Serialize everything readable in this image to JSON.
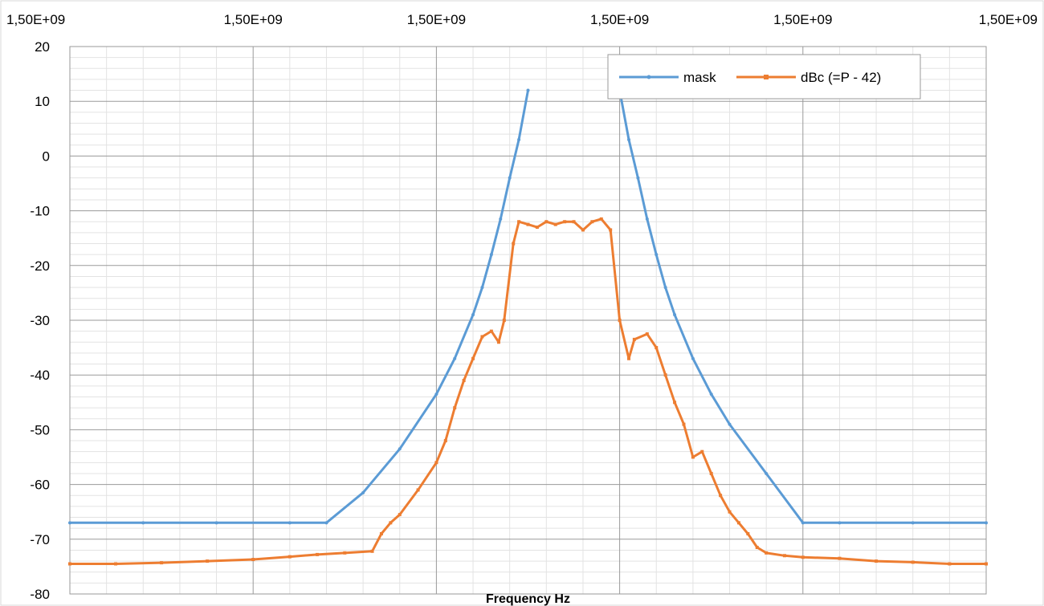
{
  "chart_data": {
    "type": "line",
    "title": "",
    "xlabel": "Frequency Hz",
    "ylabel": "",
    "x_tick_labels": [
      "1,50E+09",
      "1,50E+09",
      "1,50E+09",
      "1,50E+09",
      "1,50E+09",
      "1,50E+09"
    ],
    "x_tick_positions": [
      0,
      1,
      2,
      3,
      4,
      5
    ],
    "xlim": [
      0,
      5
    ],
    "ylim": [
      -80,
      20
    ],
    "y_ticks": [
      20,
      10,
      0,
      -10,
      -20,
      -30,
      -40,
      -50,
      -60,
      -70,
      -80
    ],
    "y_tick_labels": [
      "20",
      "10",
      "0",
      "-10",
      "-20",
      "-30",
      "-40",
      "-50",
      "-60",
      "-70",
      "-80"
    ],
    "grid": "on (major and minor)",
    "legend_position": "top-right",
    "series": [
      {
        "name": "mask",
        "color": "#5b9bd5",
        "marker": "small-dot",
        "segments": [
          {
            "x": [
              0.0,
              0.4,
              0.8,
              1.2,
              1.4,
              1.6,
              1.8,
              2.0,
              2.1,
              2.2,
              2.25,
              2.3,
              2.35,
              2.4,
              2.45,
              2.5
            ],
            "y": [
              -67,
              -67,
              -67,
              -67,
              -67,
              -61.5,
              -53.5,
              -43.5,
              -37,
              -29,
              -24,
              -18,
              -11.5,
              -4,
              3,
              12
            ]
          },
          {
            "x": [
              3.0,
              3.05,
              3.1,
              3.15,
              3.2,
              3.25,
              3.3,
              3.4,
              3.5,
              3.6,
              3.8,
              4.0,
              4.2,
              4.6,
              5.0
            ],
            "y": [
              12,
              3,
              -4,
              -11.5,
              -18,
              -24,
              -29,
              -37,
              -43.5,
              -49,
              -58,
              -67,
              -67,
              -67,
              -67
            ]
          }
        ]
      },
      {
        "name": "dBc (=P - 42)",
        "color": "#ed7d31",
        "marker": "small-square",
        "x": [
          0.0,
          0.25,
          0.5,
          0.75,
          1.0,
          1.2,
          1.35,
          1.5,
          1.65,
          1.7,
          1.75,
          1.8,
          1.9,
          2.0,
          2.05,
          2.1,
          2.15,
          2.2,
          2.25,
          2.3,
          2.34,
          2.37,
          2.42,
          2.45,
          2.5,
          2.55,
          2.6,
          2.65,
          2.7,
          2.75,
          2.8,
          2.85,
          2.9,
          2.95,
          3.0,
          3.05,
          3.08,
          3.15,
          3.2,
          3.25,
          3.3,
          3.35,
          3.4,
          3.45,
          3.5,
          3.55,
          3.6,
          3.65,
          3.7,
          3.75,
          3.8,
          3.9,
          4.0,
          4.2,
          4.4,
          4.6,
          4.8,
          5.0
        ],
        "y": [
          -74.5,
          -74.5,
          -74.3,
          -74,
          -73.7,
          -73.2,
          -72.8,
          -72.5,
          -72.2,
          -69,
          -67,
          -65.5,
          -61,
          -56,
          -52,
          -46,
          -41,
          -37,
          -33,
          -32,
          -34,
          -30,
          -16,
          -12,
          -12.5,
          -13,
          -12,
          -12.5,
          -12,
          -12,
          -13.5,
          -12,
          -11.5,
          -13.5,
          -30,
          -37,
          -33.5,
          -32.5,
          -35,
          -40,
          -45,
          -49,
          -55,
          -54,
          -58,
          -62,
          -65,
          -67,
          -69,
          -71.5,
          -72.5,
          -73,
          -73.3,
          -73.5,
          -74,
          -74.2,
          -74.5,
          -74.5
        ]
      }
    ]
  }
}
